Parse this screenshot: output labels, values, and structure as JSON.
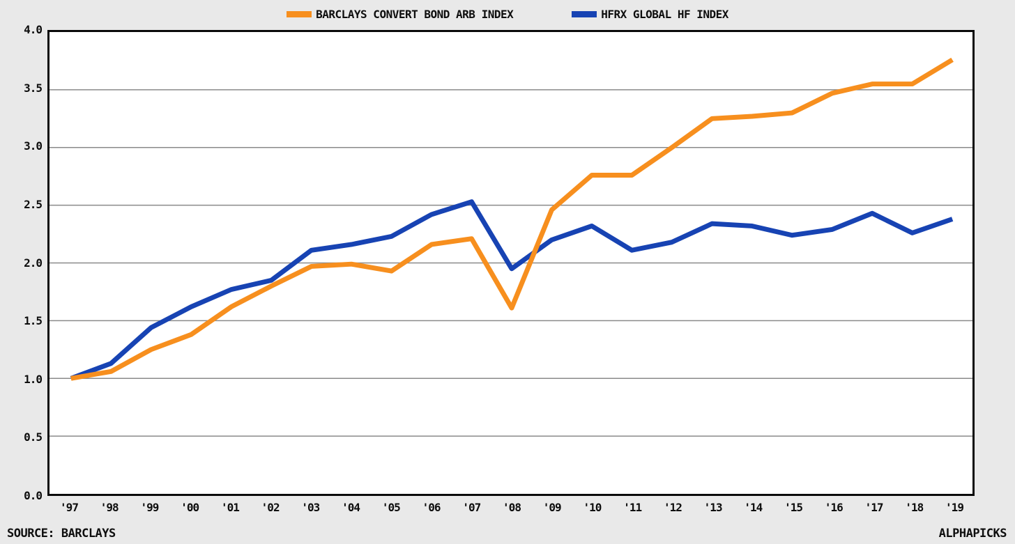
{
  "chart_data": {
    "type": "line",
    "categories": [
      "'97",
      "'98",
      "'99",
      "'00",
      "'01",
      "'02",
      "'03",
      "'04",
      "'05",
      "'06",
      "'07",
      "'08",
      "'09",
      "'10",
      "'11",
      "'12",
      "'13",
      "'14",
      "'15",
      "'16",
      "'17",
      "'18",
      "'19"
    ],
    "series": [
      {
        "name": "HFRX GLOBAL HF INDEX",
        "color": "#1743B3",
        "values": [
          1.0,
          1.13,
          1.44,
          1.62,
          1.77,
          1.85,
          2.11,
          2.16,
          2.23,
          2.42,
          2.53,
          1.95,
          2.2,
          2.32,
          2.11,
          2.18,
          2.34,
          2.32,
          2.24,
          2.29,
          2.43,
          2.26,
          2.38
        ]
      },
      {
        "name": "BARCLAYS CONVERT BOND ARB INDEX",
        "color": "#F78F1E",
        "values": [
          1.0,
          1.06,
          1.25,
          1.38,
          1.62,
          1.8,
          1.97,
          1.99,
          1.93,
          2.16,
          2.21,
          1.61,
          2.46,
          2.76,
          2.76,
          3.0,
          3.25,
          3.27,
          3.3,
          3.47,
          3.55,
          3.55,
          3.76
        ]
      }
    ],
    "legend_order": [
      "BARCLAYS CONVERT BOND ARB INDEX",
      "HFRX GLOBAL HF INDEX"
    ],
    "title": "",
    "xlabel": "",
    "ylabel": "",
    "ylim": [
      0.0,
      4.0
    ],
    "yticks": [
      "0.0",
      "0.5",
      "1.0",
      "1.5",
      "2.0",
      "2.5",
      "3.0",
      "3.5",
      "4.0"
    ],
    "grid": true,
    "legend_position": "top"
  },
  "legend": {
    "item1_label": "BARCLAYS CONVERT BOND ARB INDEX",
    "item2_label": "HFRX GLOBAL HF INDEX"
  },
  "footer": {
    "source_label": "SOURCE: BARCLAYS",
    "brand_label": "ALPHAPICKS"
  },
  "colors": {
    "background": "#E9E9E9",
    "plot_background": "#FFFFFF",
    "plot_border": "#0A0A0A",
    "grid": "#8A8A8A",
    "orange_series": "#F78F1E",
    "blue_series": "#1743B3",
    "text": "#0E0E0E"
  }
}
